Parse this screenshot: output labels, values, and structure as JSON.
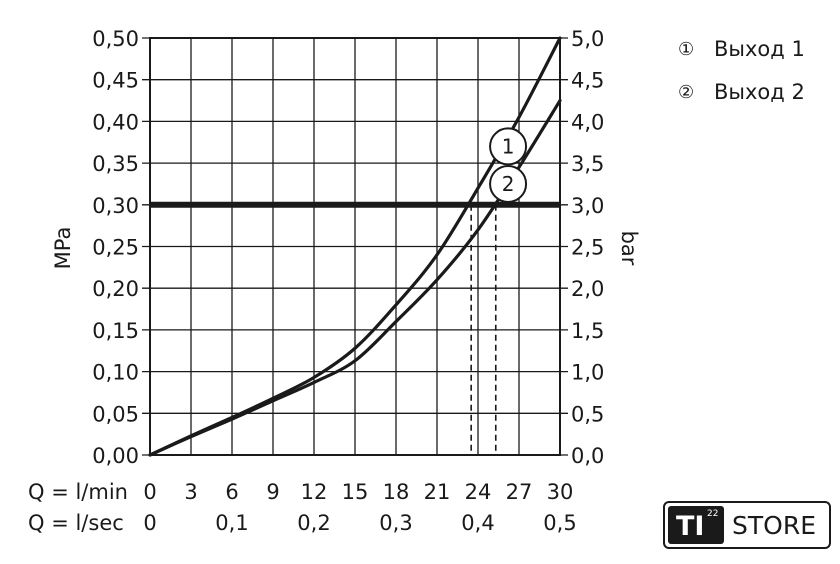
{
  "chart_data": {
    "type": "line",
    "left_axis": {
      "label": "MPa",
      "ylim": [
        0,
        0.5
      ],
      "ticks": [
        "0,00",
        "0,05",
        "0,10",
        "0,15",
        "0,20",
        "0,25",
        "0,30",
        "0,35",
        "0,40",
        "0,45",
        "0,50"
      ]
    },
    "right_axis": {
      "label": "bar",
      "ylim": [
        0,
        5
      ],
      "ticks": [
        "0,0",
        "0,5",
        "1,0",
        "1,5",
        "2,0",
        "2,5",
        "3,0",
        "3,5",
        "4,0",
        "4,5",
        "5,0"
      ]
    },
    "x_axis": {
      "xlim": [
        0,
        30
      ],
      "row1": {
        "label": "Q = l/min",
        "ticks": [
          {
            "v": 0,
            "t": "0"
          },
          {
            "v": 3,
            "t": "3"
          },
          {
            "v": 6,
            "t": "6"
          },
          {
            "v": 9,
            "t": "9"
          },
          {
            "v": 12,
            "t": "12"
          },
          {
            "v": 15,
            "t": "15"
          },
          {
            "v": 18,
            "t": "18"
          },
          {
            "v": 21,
            "t": "21"
          },
          {
            "v": 24,
            "t": "24"
          },
          {
            "v": 27,
            "t": "27"
          },
          {
            "v": 30,
            "t": "30"
          }
        ]
      },
      "row2": {
        "label": "Q = l/sec",
        "ticks": [
          {
            "v": 0,
            "t": "0"
          },
          {
            "v": 6,
            "t": "0,1"
          },
          {
            "v": 12,
            "t": "0,2"
          },
          {
            "v": 18,
            "t": "0,3"
          },
          {
            "v": 24,
            "t": "0,4"
          },
          {
            "v": 30,
            "t": "0,5"
          }
        ]
      }
    },
    "grid": true,
    "reference_line": {
      "y": 0.3
    },
    "dashed_markers": [
      23.5,
      25.3
    ],
    "series": [
      {
        "name": "Выход 1",
        "marker": "1",
        "marker_at": [
          26.2,
          0.37
        ],
        "points": [
          [
            0,
            0
          ],
          [
            3,
            0.023
          ],
          [
            6,
            0.045
          ],
          [
            9,
            0.068
          ],
          [
            12,
            0.093
          ],
          [
            15,
            0.128
          ],
          [
            18,
            0.18
          ],
          [
            21,
            0.24
          ],
          [
            24,
            0.32
          ],
          [
            27,
            0.405
          ],
          [
            30,
            0.5
          ]
        ]
      },
      {
        "name": "Выход 2",
        "marker": "2",
        "marker_at": [
          26.2,
          0.325
        ],
        "points": [
          [
            0,
            0
          ],
          [
            3,
            0.022
          ],
          [
            6,
            0.043
          ],
          [
            9,
            0.065
          ],
          [
            12,
            0.087
          ],
          [
            15,
            0.113
          ],
          [
            18,
            0.16
          ],
          [
            21,
            0.21
          ],
          [
            24,
            0.27
          ],
          [
            27,
            0.345
          ],
          [
            30,
            0.425
          ]
        ]
      }
    ],
    "legend": {
      "position": "top-right",
      "items": [
        {
          "symbol": "①",
          "text": "Выход 1"
        },
        {
          "symbol": "②",
          "text": "Выход 2"
        }
      ]
    }
  },
  "badge": {
    "ti": "TI",
    "sup": "22",
    "store": "STORE"
  }
}
